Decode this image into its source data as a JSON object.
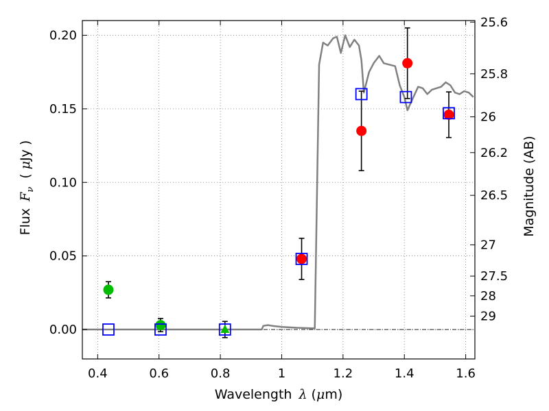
{
  "chart_data": {
    "type": "scatter",
    "title": "",
    "xlabel": {
      "prefix": "Wavelength",
      "symbol": "λ",
      "unit_open": " (",
      "unit_mu": "μ",
      "unit_rest": "m)"
    },
    "ylabel": {
      "prefix": "Flux",
      "symbol": "F",
      "subscript": "ν",
      "unit_open": "( ",
      "unit_mu": "μ",
      "unit_rest": "Jy )"
    },
    "y2label": "Magnitude (AB)",
    "xlim": [
      0.35,
      1.63
    ],
    "ylim": [
      -0.02,
      0.21
    ],
    "grid": true,
    "x_ticks": [
      {
        "value": 0.4,
        "label": "0.4"
      },
      {
        "value": 0.6,
        "label": "0.6"
      },
      {
        "value": 0.8,
        "label": "0.8"
      },
      {
        "value": 1.0,
        "label": "1"
      },
      {
        "value": 1.2,
        "label": "1.2"
      },
      {
        "value": 1.4,
        "label": "1.4"
      },
      {
        "value": 1.6,
        "label": "1.6"
      }
    ],
    "y_ticks": [
      {
        "value": 0.0,
        "label": "0.00"
      },
      {
        "value": 0.05,
        "label": "0.05"
      },
      {
        "value": 0.1,
        "label": "0.10"
      },
      {
        "value": 0.15,
        "label": "0.15"
      },
      {
        "value": 0.2,
        "label": "0.20"
      }
    ],
    "y2_ticks": [
      {
        "value": 25.6,
        "label": "25.6"
      },
      {
        "value": 25.8,
        "label": "25.8"
      },
      {
        "value": 26,
        "label": "26"
      },
      {
        "value": 26.2,
        "label": "26.2"
      },
      {
        "value": 26.5,
        "label": "26.5"
      },
      {
        "value": 27,
        "label": "27"
      },
      {
        "value": 27.5,
        "label": "27.5"
      },
      {
        "value": 28,
        "label": "28"
      },
      {
        "value": 29,
        "label": "29"
      }
    ],
    "zero_line": 0,
    "template_spectrum": {
      "color": "#808080",
      "points": [
        [
          0.35,
          0.0
        ],
        [
          0.935,
          0.0
        ],
        [
          0.94,
          0.0025
        ],
        [
          0.955,
          0.003
        ],
        [
          0.97,
          0.0025
        ],
        [
          1.0,
          0.0018
        ],
        [
          1.05,
          0.0012
        ],
        [
          1.1,
          0.0008
        ],
        [
          1.108,
          0.0008
        ],
        [
          1.122,
          0.18
        ],
        [
          1.135,
          0.195
        ],
        [
          1.15,
          0.193
        ],
        [
          1.168,
          0.198
        ],
        [
          1.18,
          0.199
        ],
        [
          1.193,
          0.188
        ],
        [
          1.207,
          0.2
        ],
        [
          1.222,
          0.192
        ],
        [
          1.237,
          0.197
        ],
        [
          1.252,
          0.193
        ],
        [
          1.26,
          0.183
        ],
        [
          1.268,
          0.161
        ],
        [
          1.285,
          0.175
        ],
        [
          1.3,
          0.181
        ],
        [
          1.318,
          0.186
        ],
        [
          1.333,
          0.181
        ],
        [
          1.37,
          0.179
        ],
        [
          1.385,
          0.166
        ],
        [
          1.4,
          0.158
        ],
        [
          1.41,
          0.149
        ],
        [
          1.423,
          0.155
        ],
        [
          1.445,
          0.165
        ],
        [
          1.46,
          0.164
        ],
        [
          1.475,
          0.16
        ],
        [
          1.49,
          0.163
        ],
        [
          1.52,
          0.165
        ],
        [
          1.535,
          0.168
        ],
        [
          1.55,
          0.166
        ],
        [
          1.565,
          0.161
        ],
        [
          1.58,
          0.16
        ],
        [
          1.595,
          0.162
        ],
        [
          1.61,
          0.161
        ],
        [
          1.625,
          0.158
        ]
      ]
    },
    "series": [
      {
        "marker": "circle",
        "color": "#00bb00",
        "points": [
          {
            "x": 0.435,
            "y": 0.027,
            "err": 0.0055
          },
          {
            "x": 0.605,
            "y": 0.003,
            "err": 0.0045
          }
        ]
      },
      {
        "marker": "triangle",
        "color": "#00bb00",
        "points": [
          {
            "x": 0.815,
            "y": 0.0,
            "err": 0.0055
          }
        ]
      },
      {
        "marker": "circle",
        "color": "#ff0000",
        "points": [
          {
            "x": 1.065,
            "y": 0.048,
            "err": 0.014
          },
          {
            "x": 1.26,
            "y": 0.135,
            "err": 0.027
          },
          {
            "x": 1.41,
            "y": 0.181,
            "err": 0.024
          },
          {
            "x": 1.545,
            "y": 0.146,
            "err": 0.0155
          }
        ]
      },
      {
        "marker": "open-square",
        "color": "#0000ff",
        "points": [
          {
            "x": 0.435,
            "y": 0.0
          },
          {
            "x": 0.605,
            "y": 0.0
          },
          {
            "x": 0.815,
            "y": 0.0
          },
          {
            "x": 1.065,
            "y": 0.048
          },
          {
            "x": 1.26,
            "y": 0.16
          },
          {
            "x": 1.405,
            "y": 0.158
          },
          {
            "x": 1.545,
            "y": 0.147
          }
        ]
      }
    ]
  }
}
